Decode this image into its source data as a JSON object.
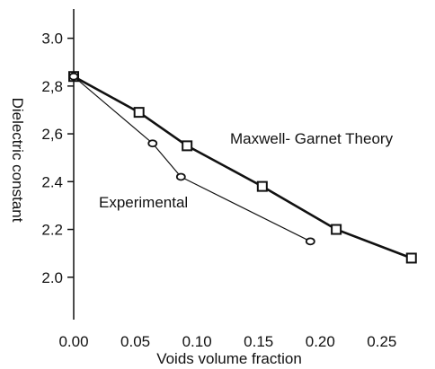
{
  "chart_data": {
    "type": "line",
    "title": "",
    "xlabel": "Voids volume fraction",
    "ylabel": "Dielectric constant",
    "xlim": [
      0.0,
      0.28
    ],
    "ylim": [
      1.8,
      3.1
    ],
    "x_ticks": [
      0.0,
      0.05,
      0.1,
      0.15,
      0.2,
      0.25
    ],
    "x_tick_labels": [
      "0.00",
      "0.05",
      "0.10",
      "0.15",
      "0.20",
      "0.25"
    ],
    "y_ticks": [
      2.0,
      2.2,
      2.4,
      2.6,
      2.8,
      3.0
    ],
    "y_tick_labels": [
      "2.0",
      "2.2",
      "2.4",
      "2,6",
      "2,8",
      "3.0"
    ],
    "grid": false,
    "legend": "none",
    "series": [
      {
        "name": "Maxwell- Garnet Theory",
        "marker": "square",
        "points": [
          {
            "x": 0.0,
            "y": 2.84
          },
          {
            "x": 0.053,
            "y": 2.69
          },
          {
            "x": 0.092,
            "y": 2.55
          },
          {
            "x": 0.153,
            "y": 2.38
          },
          {
            "x": 0.213,
            "y": 2.2
          },
          {
            "x": 0.274,
            "y": 2.08
          }
        ]
      },
      {
        "name": "Experimental",
        "marker": "circle",
        "points": [
          {
            "x": 0.0,
            "y": 2.84
          },
          {
            "x": 0.064,
            "y": 2.56
          },
          {
            "x": 0.087,
            "y": 2.42
          },
          {
            "x": 0.192,
            "y": 2.15
          }
        ]
      }
    ]
  }
}
